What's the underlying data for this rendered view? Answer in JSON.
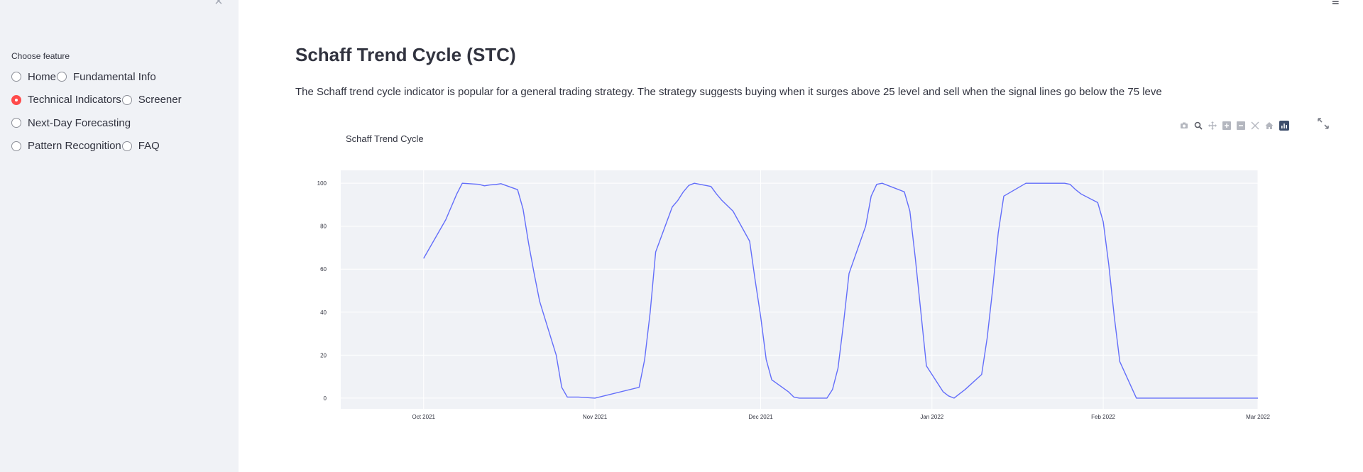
{
  "sidebar": {
    "close_icon": "close-icon",
    "feature_label": "Choose feature",
    "options": [
      {
        "label": "Home",
        "checked": false
      },
      {
        "label": "Fundamental Info",
        "checked": false
      },
      {
        "label": "Technical Indicators",
        "checked": true
      },
      {
        "label": "Screener",
        "checked": false
      },
      {
        "label": "Next-Day Forecasting",
        "checked": false
      },
      {
        "label": "Pattern Recognition",
        "checked": false
      },
      {
        "label": "FAQ",
        "checked": false
      }
    ],
    "accent_color": "#ff4b4b"
  },
  "header": {
    "menu_icon": "hamburger-menu-icon"
  },
  "main": {
    "title": "Schaff Trend Cycle (STC)",
    "description": "The Schaff trend cycle indicator is popular for a general trading strategy. The strategy suggests buying when it surges above 25 level and sell when the signal lines go below the 75 leve"
  },
  "modebar": {
    "buttons": [
      "camera-icon",
      "zoom-icon",
      "pan-icon",
      "zoom-in-icon",
      "zoom-out-icon",
      "autoscale-icon",
      "reset-axes-icon",
      "plotly-logo-icon"
    ],
    "fullscreen_icon": "fullscreen-icon"
  },
  "chart_data": {
    "type": "line",
    "title": "Schaff Trend Cycle",
    "xlabel": "",
    "ylabel": "",
    "x_ticks": [
      "Oct 2021",
      "Nov 2021",
      "Dec 2021",
      "Jan 2022",
      "Feb 2022",
      "Mar 2022"
    ],
    "y_ticks": [
      0,
      20,
      40,
      60,
      80,
      100
    ],
    "xlim": [
      "2021-09-16",
      "2022-03-01"
    ],
    "ylim": [
      -5,
      106
    ],
    "line_color": "#636efa",
    "plot_bgcolor": "#f0f2f6",
    "grid": true,
    "series": [
      {
        "x": [
          "2021-10-01",
          "2021-10-05",
          "2021-10-07",
          "2021-10-08",
          "2021-10-11",
          "2021-10-12",
          "2021-10-13",
          "2021-10-14",
          "2021-10-15",
          "2021-10-18",
          "2021-10-19",
          "2021-10-20",
          "2021-10-21",
          "2021-10-22",
          "2021-10-25",
          "2021-10-26",
          "2021-10-27",
          "2021-10-28",
          "2021-10-29",
          "2021-11-01",
          "2021-11-09",
          "2021-11-10",
          "2021-11-11",
          "2021-11-12",
          "2021-11-15",
          "2021-11-16",
          "2021-11-17",
          "2021-11-18",
          "2021-11-19",
          "2021-11-22",
          "2021-11-23",
          "2021-11-24",
          "2021-11-26",
          "2021-11-29",
          "2021-11-30",
          "2021-12-01",
          "2021-12-02",
          "2021-12-03",
          "2021-12-06",
          "2021-12-07",
          "2021-12-08",
          "2021-12-09",
          "2021-12-10",
          "2021-12-13",
          "2021-12-14",
          "2021-12-15",
          "2021-12-16",
          "2021-12-17",
          "2021-12-20",
          "2021-12-21",
          "2021-12-22",
          "2021-12-23",
          "2021-12-27",
          "2021-12-28",
          "2021-12-29",
          "2021-12-30",
          "2021-12-31",
          "2022-01-03",
          "2022-01-04",
          "2022-01-05",
          "2022-01-06",
          "2022-01-07",
          "2022-01-10",
          "2022-01-11",
          "2022-01-12",
          "2022-01-13",
          "2022-01-14",
          "2022-01-18",
          "2022-01-19",
          "2022-01-20",
          "2022-01-21",
          "2022-01-24",
          "2022-01-25",
          "2022-01-26",
          "2022-01-27",
          "2022-01-28",
          "2022-01-31",
          "2022-02-01",
          "2022-02-02",
          "2022-02-03",
          "2022-02-04",
          "2022-02-07",
          "2022-02-08",
          "2022-02-09",
          "2022-02-10",
          "2022-02-11",
          "2022-02-14",
          "2022-02-15",
          "2022-02-16",
          "2022-02-17",
          "2022-02-18",
          "2022-02-22",
          "2022-02-23",
          "2022-02-24",
          "2022-02-25",
          "2022-02-28",
          "2022-03-01"
        ],
        "y": [
          65,
          83,
          95,
          100,
          99.5,
          98.8,
          99.2,
          99.4,
          99.8,
          97,
          88,
          72,
          58,
          45,
          20,
          5,
          0.5,
          0.5,
          0.5,
          0,
          5,
          18,
          40,
          68,
          89,
          92,
          96,
          99,
          100,
          98.5,
          95,
          92,
          87,
          73,
          55,
          38,
          18,
          8.5,
          3,
          0.5,
          0,
          0,
          0,
          0,
          4,
          14,
          35,
          58,
          80,
          94,
          99.5,
          100,
          96,
          87,
          65,
          40,
          15,
          3,
          1,
          0,
          2,
          4,
          11,
          28,
          51,
          77,
          94,
          100,
          100,
          100,
          100,
          100,
          100,
          99.5,
          97,
          95,
          91,
          82,
          62,
          38,
          17,
          0,
          0,
          0,
          0,
          0,
          0,
          0,
          0,
          0,
          0,
          0,
          0,
          0,
          0,
          0,
          0
        ]
      }
    ]
  }
}
